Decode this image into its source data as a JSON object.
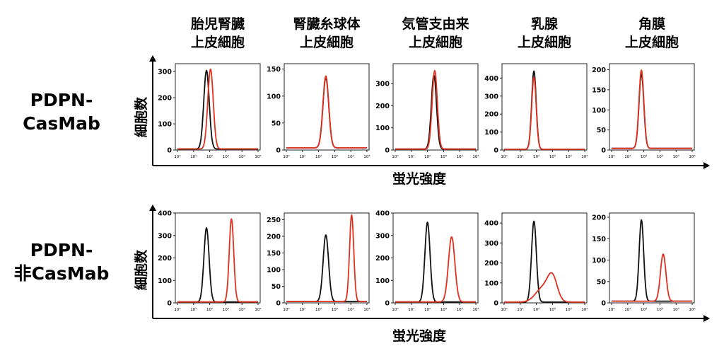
{
  "columns": [
    "胎児腎臓\n上皮細胞",
    "腎臓糸球体\n上皮細胞",
    "気管支由来\n上皮細胞",
    "乳腺\n上皮細胞",
    "角膜\n上皮細胞"
  ],
  "rows": [
    "PDPN-\nCasMab",
    "PDPN-\n非CasMab"
  ],
  "ylabel": "細胞数",
  "xlabel": "蛍光強度",
  "x_tick_labels": [
    "10⁰",
    "10¹",
    "10²",
    "10³",
    "10⁴",
    "10⁵"
  ],
  "colors": {
    "control": "#111111",
    "stained": "#e0301e"
  },
  "chart_data": [
    {
      "type": "line",
      "row": "PDPN-CasMab",
      "column": "胎児腎臓上皮細胞",
      "xscale": "log",
      "ylim": [
        0,
        330
      ],
      "yticks": [
        0,
        100,
        200,
        300
      ],
      "series": [
        {
          "color": "#111111",
          "peaks": [
            {
              "logx": 1.8,
              "height": 300,
              "width": 0.17
            }
          ]
        },
        {
          "color": "#e0301e",
          "peaks": [
            {
              "logx": 2.05,
              "height": 305,
              "width": 0.17
            }
          ]
        }
      ]
    },
    {
      "type": "line",
      "row": "PDPN-CasMab",
      "column": "腎臓糸球体上皮細胞",
      "xscale": "log",
      "ylim": [
        0,
        160
      ],
      "yticks": [
        0,
        50,
        100,
        150
      ],
      "series": [
        {
          "color": "#111111",
          "peaks": [
            {
              "logx": 2.45,
              "height": 130,
              "width": 0.18
            }
          ]
        },
        {
          "color": "#e0301e",
          "peaks": [
            {
              "logx": 2.45,
              "height": 133,
              "width": 0.18
            }
          ]
        }
      ]
    },
    {
      "type": "line",
      "row": "PDPN-CasMab",
      "column": "気管支由来上皮細胞",
      "xscale": "log",
      "ylim": [
        0,
        390
      ],
      "yticks": [
        0,
        100,
        200,
        300
      ],
      "series": [
        {
          "color": "#111111",
          "peaks": [
            {
              "logx": 2.4,
              "height": 335,
              "width": 0.16
            }
          ]
        },
        {
          "color": "#e0301e",
          "peaks": [
            {
              "logx": 2.45,
              "height": 355,
              "width": 0.16
            }
          ]
        }
      ]
    },
    {
      "type": "line",
      "row": "PDPN-CasMab",
      "column": "乳腺上皮細胞",
      "xscale": "log",
      "ylim": [
        0,
        480
      ],
      "yticks": [
        0,
        100,
        200,
        300,
        400
      ],
      "series": [
        {
          "color": "#111111",
          "peaks": [
            {
              "logx": 1.85,
              "height": 435,
              "width": 0.14
            }
          ]
        },
        {
          "color": "#e0301e",
          "peaks": [
            {
              "logx": 1.85,
              "height": 400,
              "width": 0.14
            }
          ]
        }
      ]
    },
    {
      "type": "line",
      "row": "PDPN-CasMab",
      "column": "角膜上皮細胞",
      "xscale": "log",
      "ylim": [
        0,
        215
      ],
      "yticks": [
        0,
        50,
        100,
        150,
        200
      ],
      "series": [
        {
          "color": "#111111",
          "peaks": [
            {
              "logx": 1.85,
              "height": 185,
              "width": 0.15
            }
          ]
        },
        {
          "color": "#e0301e",
          "peaks": [
            {
              "logx": 1.85,
              "height": 195,
              "width": 0.15
            }
          ]
        }
      ]
    },
    {
      "type": "line",
      "row": "PDPN-非CasMab",
      "column": "胎児腎臓上皮細胞",
      "xscale": "log",
      "ylim": [
        0,
        400
      ],
      "yticks": [
        0,
        100,
        200,
        300,
        400
      ],
      "series": [
        {
          "color": "#111111",
          "peaks": [
            {
              "logx": 1.8,
              "height": 330,
              "width": 0.16
            }
          ]
        },
        {
          "color": "#e0301e",
          "peaks": [
            {
              "logx": 3.35,
              "height": 370,
              "width": 0.14
            }
          ]
        }
      ]
    },
    {
      "type": "line",
      "row": "PDPN-非CasMab",
      "column": "腎臓糸球体上皮細胞",
      "xscale": "log",
      "ylim": [
        0,
        270
      ],
      "yticks": [
        0,
        50,
        100,
        150,
        200,
        250
      ],
      "series": [
        {
          "color": "#111111",
          "peaks": [
            {
              "logx": 2.45,
              "height": 200,
              "width": 0.17
            }
          ]
        },
        {
          "color": "#e0301e",
          "peaks": [
            {
              "logx": 4.05,
              "height": 260,
              "width": 0.13
            }
          ]
        }
      ]
    },
    {
      "type": "line",
      "row": "PDPN-非CasMab",
      "column": "気管支由来上皮細胞",
      "xscale": "log",
      "ylim": [
        0,
        400
      ],
      "yticks": [
        0,
        100,
        200,
        300,
        400
      ],
      "series": [
        {
          "color": "#111111",
          "peaks": [
            {
              "logx": 2.0,
              "height": 355,
              "width": 0.16
            }
          ]
        },
        {
          "color": "#e0301e",
          "peaks": [
            {
              "logx": 3.5,
              "height": 290,
              "width": 0.2
            }
          ]
        }
      ]
    },
    {
      "type": "line",
      "row": "PDPN-非CasMab",
      "column": "乳腺上皮細胞",
      "xscale": "log",
      "ylim": [
        0,
        450
      ],
      "yticks": [
        0,
        100,
        200,
        300,
        400
      ],
      "series": [
        {
          "color": "#111111",
          "peaks": [
            {
              "logx": 1.85,
              "height": 405,
              "width": 0.15
            }
          ]
        },
        {
          "color": "#e0301e",
          "peaks": [
            {
              "logx": 2.4,
              "height": 70,
              "width": 0.45
            },
            {
              "logx": 3.0,
              "height": 115,
              "width": 0.3
            }
          ]
        }
      ]
    },
    {
      "type": "line",
      "row": "PDPN-非CasMab",
      "column": "角膜上皮細胞",
      "xscale": "log",
      "ylim": [
        0,
        210
      ],
      "yticks": [
        0,
        50,
        100,
        150,
        200
      ],
      "series": [
        {
          "color": "#111111",
          "peaks": [
            {
              "logx": 1.85,
              "height": 190,
              "width": 0.14
            }
          ]
        },
        {
          "color": "#e0301e",
          "peaks": [
            {
              "logx": 3.2,
              "height": 110,
              "width": 0.17
            }
          ]
        }
      ]
    }
  ]
}
